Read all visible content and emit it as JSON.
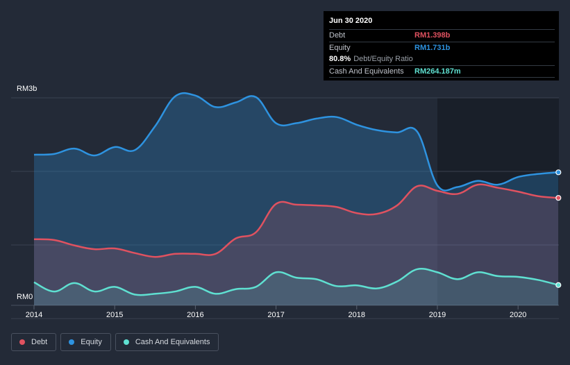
{
  "tooltip": {
    "date": "Jun 30 2020",
    "debt_label": "Debt",
    "debt_value": "RM1.398b",
    "equity_label": "Equity",
    "equity_value": "RM1.731b",
    "ratio_value": "80.8%",
    "ratio_label": "Debt/Equity Ratio",
    "cash_label": "Cash And Equivalents",
    "cash_value": "RM264.187m"
  },
  "colors": {
    "debt": "#e05260",
    "equity": "#2e93e0",
    "cash": "#5fe0d1",
    "future_shade": "#191f29",
    "background": "#232a37"
  },
  "legend": [
    {
      "label": "Debt",
      "color": "#e05260"
    },
    {
      "label": "Equity",
      "color": "#2e93e0"
    },
    {
      "label": "Cash And Equivalents",
      "color": "#5fe0d1"
    }
  ],
  "chart_data": {
    "type": "area",
    "title": "",
    "xlabel": "",
    "ylabel": "",
    "y_top_label": "RM3b",
    "y_bottom_label": "RM0",
    "xlim": [
      2013.72,
      2020.5
    ],
    "ylim": [
      0,
      2.7
    ],
    "x_ticks": [
      "2014",
      "2015",
      "2016",
      "2017",
      "2018",
      "2019",
      "2020"
    ],
    "grid": true,
    "legend_position": "bottom-left",
    "series": [
      {
        "name": "Equity",
        "x": [
          2014.0,
          2014.25,
          2014.5,
          2014.75,
          2015.0,
          2015.25,
          2015.5,
          2015.75,
          2016.0,
          2016.25,
          2016.5,
          2016.75,
          2017.0,
          2017.25,
          2017.5,
          2017.75,
          2018.0,
          2018.25,
          2018.5,
          2018.75,
          2019.0,
          2019.25,
          2019.5,
          2019.75,
          2020.0,
          2020.25,
          2020.5
        ],
        "values": [
          1.96,
          1.97,
          2.04,
          1.95,
          2.06,
          2.02,
          2.33,
          2.72,
          2.73,
          2.58,
          2.64,
          2.71,
          2.37,
          2.37,
          2.43,
          2.45,
          2.35,
          2.28,
          2.25,
          2.26,
          1.56,
          1.54,
          1.62,
          1.57,
          1.67,
          1.71,
          1.731
        ]
      },
      {
        "name": "Debt",
        "x": [
          2014.0,
          2014.25,
          2014.5,
          2014.75,
          2015.0,
          2015.25,
          2015.5,
          2015.75,
          2016.0,
          2016.25,
          2016.5,
          2016.75,
          2017.0,
          2017.25,
          2017.5,
          2017.75,
          2018.0,
          2018.25,
          2018.5,
          2018.75,
          2019.0,
          2019.25,
          2019.5,
          2019.75,
          2020.0,
          2020.25,
          2020.5
        ],
        "values": [
          0.86,
          0.85,
          0.78,
          0.73,
          0.74,
          0.68,
          0.63,
          0.67,
          0.67,
          0.67,
          0.87,
          0.95,
          1.32,
          1.31,
          1.3,
          1.28,
          1.2,
          1.19,
          1.3,
          1.55,
          1.49,
          1.45,
          1.57,
          1.53,
          1.48,
          1.42,
          1.398
        ]
      },
      {
        "name": "Cash And Equivalents",
        "x": [
          2014.0,
          2014.25,
          2014.5,
          2014.75,
          2015.0,
          2015.25,
          2015.5,
          2015.75,
          2016.0,
          2016.25,
          2016.5,
          2016.75,
          2017.0,
          2017.25,
          2017.5,
          2017.75,
          2018.0,
          2018.25,
          2018.5,
          2018.75,
          2019.0,
          2019.25,
          2019.5,
          2019.75,
          2020.0,
          2020.25,
          2020.5
        ],
        "values": [
          0.3,
          0.18,
          0.29,
          0.18,
          0.24,
          0.14,
          0.15,
          0.18,
          0.24,
          0.15,
          0.21,
          0.24,
          0.43,
          0.36,
          0.34,
          0.25,
          0.26,
          0.22,
          0.31,
          0.47,
          0.43,
          0.34,
          0.43,
          0.38,
          0.37,
          0.33,
          0.264
        ]
      }
    ]
  }
}
